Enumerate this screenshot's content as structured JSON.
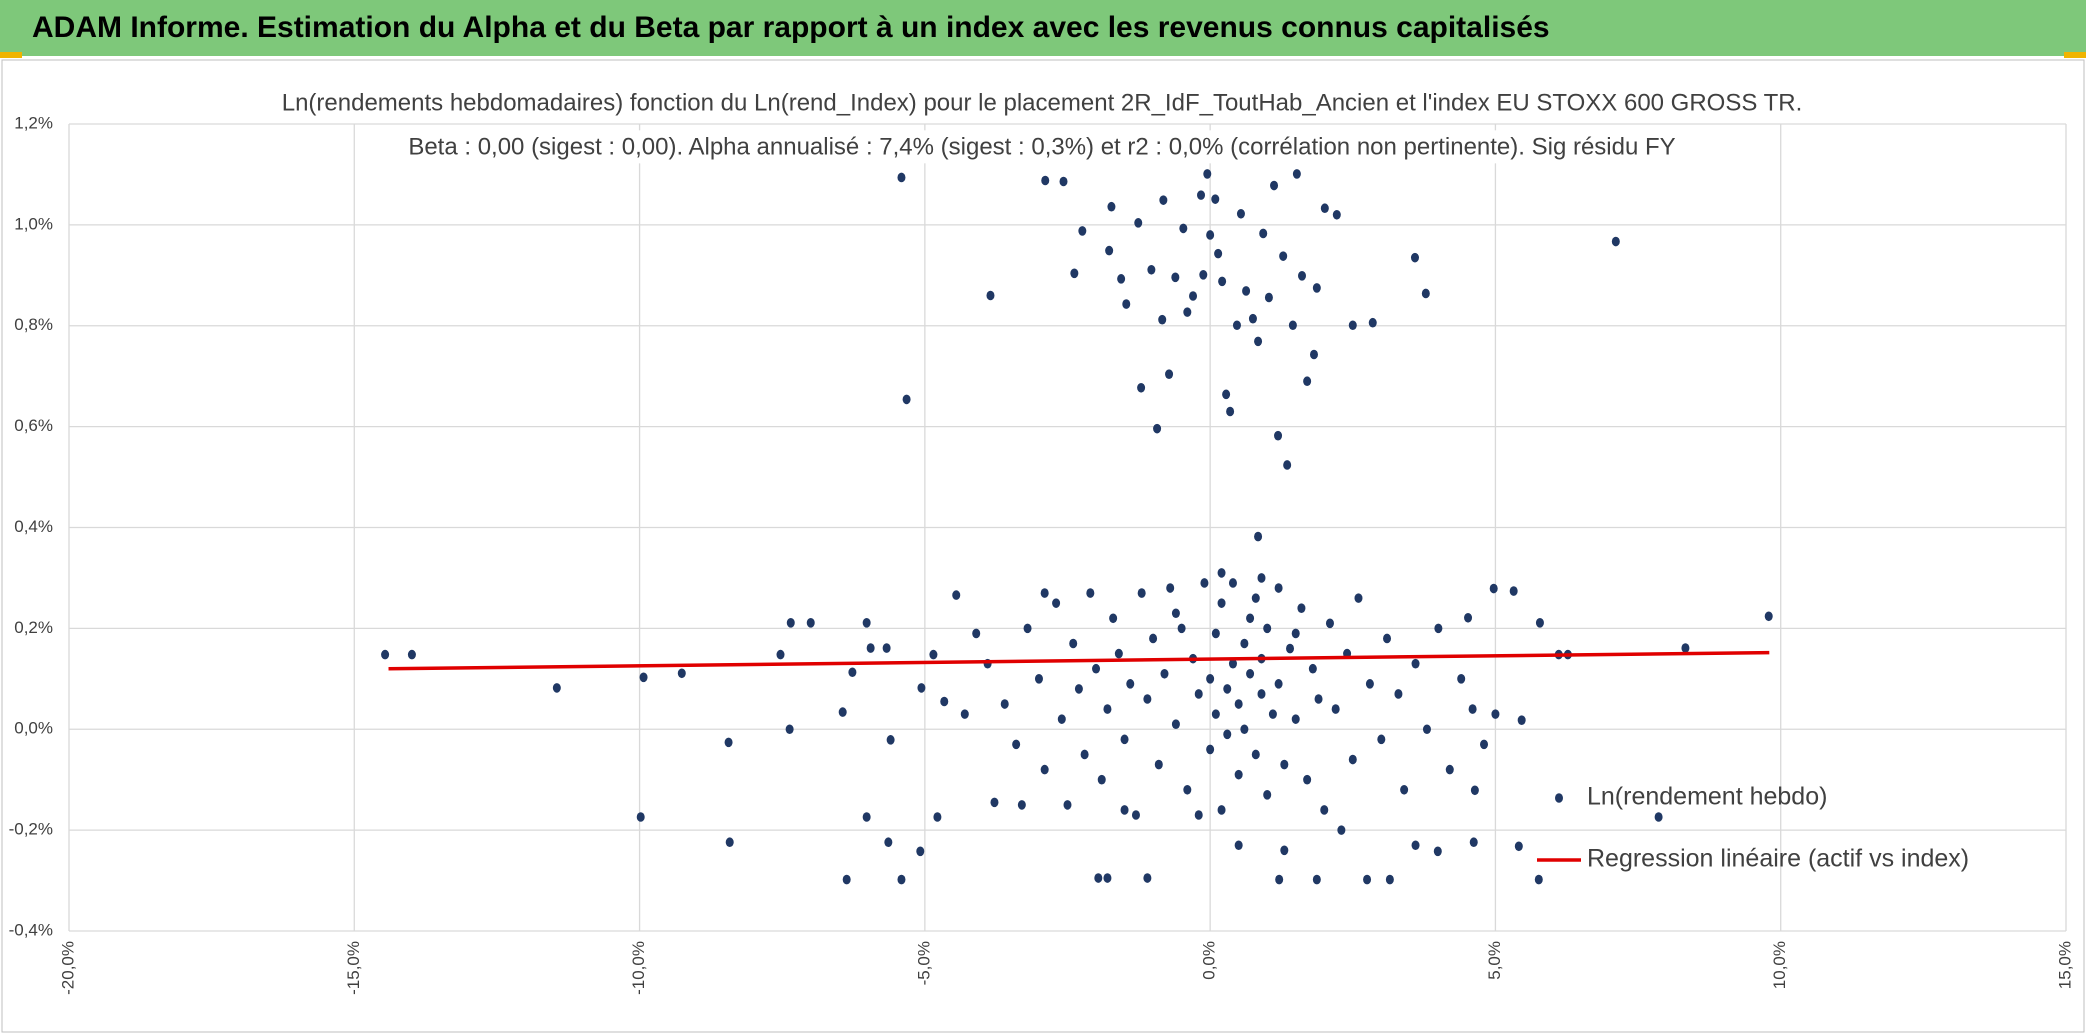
{
  "header": {
    "title": "ADAM Informe. Estimation du Alpha et du Beta par rapport à un index avec les revenus connus capitalisés"
  },
  "chart_data": {
    "type": "scatter",
    "title": "Ln(rendements hebdomadaires) fonction du Ln(rend_Index) pour le placement 2R_IdF_ToutHab_Ancien et l'index EU STOXX 600 GROSS TR.",
    "subtitle": "Beta : 0,00 (sigest : 0,00). Alpha annualisé : 7,4% (sigest : 0,3%) et r2 : 0,0% (corrélation non pertinente). Sig résidu FY",
    "xlim": [
      -20,
      15
    ],
    "xticks": [
      {
        "value": -20,
        "label": "-20,0%"
      },
      {
        "value": -15,
        "label": "-15,0%"
      },
      {
        "value": -10,
        "label": "-10,0%"
      },
      {
        "value": -5,
        "label": "-5,0%"
      },
      {
        "value": 0,
        "label": "0,0%"
      },
      {
        "value": 5,
        "label": "5,0%"
      },
      {
        "value": 10,
        "label": "10,0%"
      },
      {
        "value": 15,
        "label": "15,0%"
      }
    ],
    "ylim": [
      -0.4,
      1.2
    ],
    "yticks": [
      {
        "value": -0.4,
        "label": "-0,4%"
      },
      {
        "value": -0.2,
        "label": "-0,2%"
      },
      {
        "value": 0,
        "label": "0,0%"
      },
      {
        "value": 0.2,
        "label": "0,2%"
      },
      {
        "value": 0.4,
        "label": "0,4%"
      },
      {
        "value": 0.6,
        "label": "0,6%"
      },
      {
        "value": 0.8,
        "label": "0,8%"
      },
      {
        "value": 1.0,
        "label": "1,0%"
      },
      {
        "value": 1.2,
        "label": "1,2%"
      }
    ],
    "grid": true,
    "legend": "lower right",
    "series": [
      {
        "name": "Ln(rendement hebdo)",
        "color": "#203864",
        "mode": "markers",
        "x": [
          -14.46,
          -13.99,
          -11.45,
          -9.93,
          -9.98,
          -9.26,
          -8.44,
          -8.42,
          -7.53,
          -7.35,
          -7.0,
          -7.37,
          -6.44,
          -6.37,
          -6.27,
          -6.02,
          -6.02,
          -5.95,
          -5.64,
          -5.6,
          -5.41,
          -5.32,
          -5.41,
          -5.67,
          -5.08,
          -5.06,
          -4.85,
          -4.78,
          -4.66,
          -4.45,
          -3.85,
          -3.78,
          -2.89,
          -2.57,
          -2.24,
          -2.38,
          -1.77,
          -1.73,
          -1.47,
          -1.56,
          -1.26,
          -1.21,
          -1.03,
          -0.93,
          -0.84,
          -0.82,
          -0.72,
          -0.61,
          -0.47,
          -0.4,
          -0.3,
          -0.16,
          -0.12,
          -0.05,
          0,
          0.09,
          0.14,
          0.21,
          0.28,
          0.35,
          0.47,
          0.54,
          0.63,
          0.75,
          0.84,
          0.93,
          1.03,
          1.12,
          1.19,
          1.28,
          1.35,
          1.45,
          1.52,
          1.61,
          1.7,
          1.82,
          1.87,
          2.01,
          2.22,
          2.5,
          2.85,
          3.59,
          3.78,
          7.11,
          7.86,
          8.33,
          9.79,
          6.27,
          6.11,
          5.78,
          5.76,
          5.46,
          5.41,
          5.32,
          4.97,
          4.64,
          4.62,
          4.52,
          3.99,
          3.15,
          2.75,
          1.87,
          1.21,
          -1.1,
          -1.8,
          -1.96,
          0.84,
          -3.9,
          -3.6,
          -3.4,
          -3.2,
          -3.0,
          -2.9,
          -2.7,
          -2.6,
          -2.5,
          -2.4,
          -2.3,
          -2.2,
          -2.1,
          -2.0,
          -1.9,
          -1.8,
          -1.7,
          -1.6,
          -1.5,
          -1.4,
          -1.3,
          -1.2,
          -1.1,
          -1.0,
          -0.9,
          -0.8,
          -0.7,
          -0.6,
          -0.5,
          -0.4,
          -0.3,
          -0.2,
          -0.1,
          0.0,
          0.0,
          0.1,
          0.1,
          0.2,
          0.2,
          0.3,
          0.3,
          0.4,
          0.4,
          0.5,
          0.5,
          0.6,
          0.6,
          0.7,
          0.7,
          0.8,
          0.8,
          0.9,
          0.9,
          1.0,
          1.0,
          1.1,
          1.2,
          1.2,
          1.3,
          1.4,
          1.5,
          1.6,
          1.7,
          1.8,
          1.9,
          2.0,
          2.1,
          2.2,
          2.4,
          2.5,
          2.6,
          2.8,
          3.0,
          3.1,
          3.3,
          3.4,
          3.6,
          3.8,
          4.0,
          4.2,
          4.4,
          4.6,
          4.8,
          5.0,
          -4.3,
          -4.1,
          -3.3,
          -1.5,
          0.5,
          1.3,
          -0.2,
          2.3,
          1.5,
          -0.6,
          0.9,
          0.2,
          -2.9,
          3.6
        ],
        "values": [
          0.148,
          0.148,
          0.082,
          0.103,
          -0.174,
          0.111,
          -0.026,
          -0.224,
          0.148,
          0.211,
          0.211,
          0.0,
          0.034,
          -0.298,
          0.113,
          0.211,
          -0.174,
          0.161,
          -0.224,
          -0.021,
          1.094,
          0.654,
          -0.298,
          0.161,
          -0.242,
          0.082,
          0.148,
          -0.174,
          0.055,
          0.266,
          0.86,
          -0.145,
          1.088,
          1.086,
          0.988,
          0.904,
          0.949,
          1.036,
          0.843,
          0.893,
          1.004,
          0.677,
          0.911,
          0.596,
          0.812,
          1.049,
          0.704,
          0.896,
          0.993,
          0.827,
          0.859,
          1.059,
          0.901,
          1.101,
          0.98,
          1.051,
          0.943,
          0.888,
          0.664,
          0.63,
          0.801,
          1.022,
          0.869,
          0.814,
          0.769,
          0.983,
          0.856,
          1.078,
          0.582,
          0.938,
          0.524,
          0.801,
          1.101,
          0.899,
          0.69,
          0.743,
          0.875,
          1.033,
          1.02,
          0.801,
          0.806,
          0.935,
          0.864,
          0.967,
          -0.174,
          0.161,
          0.224,
          0.148,
          0.148,
          0.211,
          -0.298,
          0.018,
          -0.232,
          0.274,
          0.279,
          -0.121,
          -0.224,
          0.221,
          -0.242,
          -0.298,
          -0.298,
          -0.298,
          -0.298,
          -0.295,
          -0.295,
          -0.295,
          0.382,
          0.13,
          0.05,
          -0.03,
          0.2,
          0.1,
          -0.08,
          0.25,
          0.02,
          -0.15,
          0.17,
          0.08,
          -0.05,
          0.27,
          0.12,
          -0.1,
          0.04,
          0.22,
          0.15,
          -0.02,
          0.09,
          -0.17,
          0.27,
          0.06,
          0.18,
          -0.07,
          0.11,
          0.28,
          0.01,
          0.2,
          -0.12,
          0.14,
          0.07,
          0.29,
          -0.04,
          0.1,
          0.19,
          0.03,
          -0.16,
          0.25,
          0.08,
          -0.01,
          0.13,
          0.29,
          0.05,
          -0.09,
          0.17,
          0.0,
          0.22,
          0.11,
          -0.05,
          0.26,
          0.07,
          0.14,
          -0.13,
          0.2,
          0.03,
          0.28,
          0.09,
          -0.07,
          0.16,
          0.02,
          0.24,
          -0.1,
          0.12,
          0.06,
          -0.16,
          0.21,
          0.04,
          0.15,
          -0.06,
          0.26,
          0.09,
          -0.02,
          0.18,
          0.07,
          -0.12,
          0.13,
          0.0,
          0.2,
          -0.08,
          0.1,
          0.04,
          -0.03,
          0.03,
          0.03,
          0.19,
          -0.15,
          -0.16,
          -0.23,
          -0.24,
          -0.17,
          -0.2,
          0.19,
          0.23,
          0.3,
          0.31,
          0.27,
          -0.23
        ]
      },
      {
        "name": "Regression linéaire (actif vs index)",
        "color": "#e00000",
        "mode": "lines",
        "x": [
          -14.4,
          9.8
        ],
        "values": [
          0.12,
          0.152
        ]
      }
    ]
  }
}
